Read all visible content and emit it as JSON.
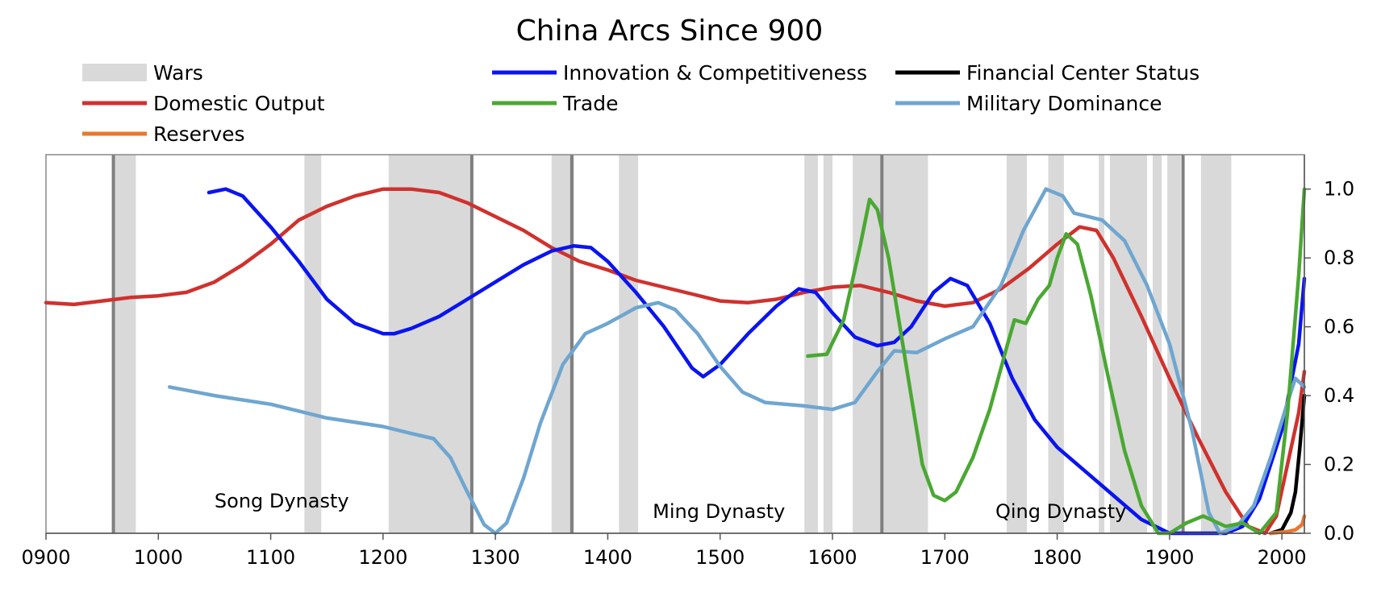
{
  "chart_data": {
    "type": "line",
    "title": "China Arcs Since 900",
    "xlim": [
      900,
      2020
    ],
    "ylim": [
      0,
      1.1
    ],
    "x_ticks": [
      "0900",
      "1000",
      "1100",
      "1200",
      "1300",
      "1400",
      "1500",
      "1600",
      "1700",
      "1800",
      "1900",
      "2000"
    ],
    "y_ticks": [
      "0.0",
      "0.2",
      "0.4",
      "0.6",
      "0.8",
      "1.0"
    ],
    "y_axis_side": "right",
    "grid": false,
    "legend": {
      "placement": "top",
      "items": [
        {
          "label": "Wars",
          "kind": "band",
          "color": "#d9d9d9"
        },
        {
          "label": "Innovation & Competitiveness",
          "kind": "line",
          "color": "#0a14f0"
        },
        {
          "label": "Financial Center Status",
          "kind": "line",
          "color": "#000000"
        },
        {
          "label": "Domestic Output",
          "kind": "line",
          "color": "#d0312d"
        },
        {
          "label": "Trade",
          "kind": "line",
          "color": "#4aa832"
        },
        {
          "label": "Military Dominance",
          "kind": "line",
          "color": "#6fa6d0"
        },
        {
          "label": "Reserves",
          "kind": "line",
          "color": "#e8772e"
        }
      ]
    },
    "war_periods": [
      [
        960,
        980
      ],
      [
        1130,
        1145
      ],
      [
        1205,
        1280
      ],
      [
        1350,
        1370
      ],
      [
        1410,
        1427
      ],
      [
        1575,
        1587
      ],
      [
        1592,
        1600
      ],
      [
        1618,
        1685
      ],
      [
        1755,
        1773
      ],
      [
        1792,
        1806
      ],
      [
        1837,
        1842
      ],
      [
        1847,
        1880
      ],
      [
        1885,
        1893
      ],
      [
        1898,
        1910
      ],
      [
        1928,
        1955
      ]
    ],
    "transition_lines": [
      960,
      1279,
      1368,
      1644,
      1912
    ],
    "annotations": [
      {
        "text": "Song Dynasty",
        "x": 1050,
        "y": 0.075
      },
      {
        "text": "Ming Dynasty",
        "x": 1440,
        "y": 0.045
      },
      {
        "text": "Qing Dynasty",
        "x": 1745,
        "y": 0.045
      }
    ],
    "series": [
      {
        "name": "Domestic Output",
        "color": "#d0312d",
        "points": [
          [
            900,
            0.67
          ],
          [
            925,
            0.665
          ],
          [
            950,
            0.675
          ],
          [
            975,
            0.685
          ],
          [
            1000,
            0.69
          ],
          [
            1025,
            0.7
          ],
          [
            1050,
            0.73
          ],
          [
            1075,
            0.78
          ],
          [
            1100,
            0.84
          ],
          [
            1125,
            0.91
          ],
          [
            1150,
            0.95
          ],
          [
            1175,
            0.98
          ],
          [
            1200,
            1.0
          ],
          [
            1225,
            1.0
          ],
          [
            1250,
            0.99
          ],
          [
            1275,
            0.96
          ],
          [
            1300,
            0.92
          ],
          [
            1325,
            0.88
          ],
          [
            1350,
            0.83
          ],
          [
            1375,
            0.79
          ],
          [
            1400,
            0.765
          ],
          [
            1425,
            0.735
          ],
          [
            1450,
            0.715
          ],
          [
            1475,
            0.695
          ],
          [
            1500,
            0.675
          ],
          [
            1525,
            0.67
          ],
          [
            1550,
            0.68
          ],
          [
            1575,
            0.7
          ],
          [
            1600,
            0.715
          ],
          [
            1625,
            0.72
          ],
          [
            1650,
            0.7
          ],
          [
            1675,
            0.675
          ],
          [
            1700,
            0.66
          ],
          [
            1725,
            0.67
          ],
          [
            1750,
            0.71
          ],
          [
            1775,
            0.77
          ],
          [
            1800,
            0.84
          ],
          [
            1820,
            0.89
          ],
          [
            1835,
            0.88
          ],
          [
            1850,
            0.8
          ],
          [
            1875,
            0.63
          ],
          [
            1900,
            0.45
          ],
          [
            1925,
            0.28
          ],
          [
            1950,
            0.12
          ],
          [
            1970,
            0.02
          ],
          [
            1985,
            0.0
          ],
          [
            1995,
            0.05
          ],
          [
            2005,
            0.2
          ],
          [
            2015,
            0.35
          ],
          [
            2020,
            0.47
          ]
        ]
      },
      {
        "name": "Innovation & Competitiveness",
        "color": "#0a14f0",
        "points": [
          [
            1045,
            0.99
          ],
          [
            1060,
            1.0
          ],
          [
            1075,
            0.98
          ],
          [
            1100,
            0.89
          ],
          [
            1125,
            0.79
          ],
          [
            1150,
            0.68
          ],
          [
            1175,
            0.61
          ],
          [
            1200,
            0.58
          ],
          [
            1210,
            0.58
          ],
          [
            1225,
            0.595
          ],
          [
            1250,
            0.63
          ],
          [
            1275,
            0.68
          ],
          [
            1300,
            0.73
          ],
          [
            1325,
            0.78
          ],
          [
            1350,
            0.82
          ],
          [
            1370,
            0.835
          ],
          [
            1385,
            0.83
          ],
          [
            1400,
            0.79
          ],
          [
            1425,
            0.7
          ],
          [
            1450,
            0.6
          ],
          [
            1475,
            0.48
          ],
          [
            1485,
            0.455
          ],
          [
            1500,
            0.49
          ],
          [
            1525,
            0.58
          ],
          [
            1550,
            0.66
          ],
          [
            1570,
            0.71
          ],
          [
            1585,
            0.7
          ],
          [
            1600,
            0.64
          ],
          [
            1620,
            0.57
          ],
          [
            1640,
            0.545
          ],
          [
            1655,
            0.555
          ],
          [
            1670,
            0.6
          ],
          [
            1690,
            0.7
          ],
          [
            1705,
            0.74
          ],
          [
            1720,
            0.72
          ],
          [
            1740,
            0.61
          ],
          [
            1760,
            0.45
          ],
          [
            1780,
            0.33
          ],
          [
            1800,
            0.25
          ],
          [
            1825,
            0.18
          ],
          [
            1850,
            0.11
          ],
          [
            1875,
            0.04
          ],
          [
            1900,
            0.0
          ],
          [
            1925,
            0.0
          ],
          [
            1950,
            0.0
          ],
          [
            1965,
            0.02
          ],
          [
            1980,
            0.1
          ],
          [
            2000,
            0.3
          ],
          [
            2015,
            0.55
          ],
          [
            2020,
            0.74
          ]
        ]
      },
      {
        "name": "Military Dominance",
        "color": "#6fa6d0",
        "points": [
          [
            1010,
            0.425
          ],
          [
            1050,
            0.4
          ],
          [
            1100,
            0.375
          ],
          [
            1125,
            0.355
          ],
          [
            1150,
            0.335
          ],
          [
            1200,
            0.31
          ],
          [
            1225,
            0.29
          ],
          [
            1245,
            0.275
          ],
          [
            1260,
            0.22
          ],
          [
            1275,
            0.12
          ],
          [
            1290,
            0.025
          ],
          [
            1300,
            0.0
          ],
          [
            1310,
            0.03
          ],
          [
            1325,
            0.16
          ],
          [
            1340,
            0.32
          ],
          [
            1360,
            0.49
          ],
          [
            1380,
            0.58
          ],
          [
            1400,
            0.61
          ],
          [
            1425,
            0.655
          ],
          [
            1445,
            0.67
          ],
          [
            1460,
            0.65
          ],
          [
            1480,
            0.58
          ],
          [
            1500,
            0.485
          ],
          [
            1520,
            0.41
          ],
          [
            1540,
            0.38
          ],
          [
            1575,
            0.37
          ],
          [
            1600,
            0.36
          ],
          [
            1620,
            0.38
          ],
          [
            1640,
            0.47
          ],
          [
            1655,
            0.53
          ],
          [
            1675,
            0.525
          ],
          [
            1700,
            0.565
          ],
          [
            1725,
            0.6
          ],
          [
            1750,
            0.72
          ],
          [
            1770,
            0.88
          ],
          [
            1790,
            1.0
          ],
          [
            1805,
            0.98
          ],
          [
            1815,
            0.93
          ],
          [
            1840,
            0.91
          ],
          [
            1860,
            0.85
          ],
          [
            1880,
            0.72
          ],
          [
            1900,
            0.55
          ],
          [
            1920,
            0.3
          ],
          [
            1935,
            0.06
          ],
          [
            1945,
            0.0
          ],
          [
            1960,
            0.02
          ],
          [
            1975,
            0.08
          ],
          [
            1990,
            0.22
          ],
          [
            2005,
            0.38
          ],
          [
            2012,
            0.45
          ],
          [
            2020,
            0.425
          ]
        ]
      },
      {
        "name": "Trade",
        "color": "#4aa832",
        "points": [
          [
            1578,
            0.515
          ],
          [
            1595,
            0.52
          ],
          [
            1610,
            0.62
          ],
          [
            1625,
            0.84
          ],
          [
            1633,
            0.97
          ],
          [
            1640,
            0.94
          ],
          [
            1650,
            0.8
          ],
          [
            1660,
            0.6
          ],
          [
            1670,
            0.4
          ],
          [
            1680,
            0.2
          ],
          [
            1690,
            0.11
          ],
          [
            1700,
            0.095
          ],
          [
            1710,
            0.12
          ],
          [
            1725,
            0.22
          ],
          [
            1740,
            0.36
          ],
          [
            1755,
            0.54
          ],
          [
            1762,
            0.62
          ],
          [
            1772,
            0.61
          ],
          [
            1783,
            0.68
          ],
          [
            1793,
            0.72
          ],
          [
            1800,
            0.8
          ],
          [
            1808,
            0.87
          ],
          [
            1818,
            0.84
          ],
          [
            1830,
            0.69
          ],
          [
            1845,
            0.46
          ],
          [
            1860,
            0.24
          ],
          [
            1875,
            0.08
          ],
          [
            1890,
            0.0
          ],
          [
            1900,
            0.0
          ],
          [
            1915,
            0.03
          ],
          [
            1930,
            0.05
          ],
          [
            1950,
            0.02
          ],
          [
            1965,
            0.03
          ],
          [
            1980,
            0.0
          ],
          [
            1995,
            0.06
          ],
          [
            2005,
            0.35
          ],
          [
            2015,
            0.75
          ],
          [
            2020,
            1.0
          ]
        ]
      },
      {
        "name": "Financial Center Status",
        "color": "#000000",
        "points": [
          [
            1990,
            0.0
          ],
          [
            2000,
            0.01
          ],
          [
            2008,
            0.06
          ],
          [
            2012,
            0.12
          ],
          [
            2016,
            0.25
          ],
          [
            2020,
            0.4
          ]
        ]
      },
      {
        "name": "Reserves",
        "color": "#e8772e",
        "points": [
          [
            1990,
            0.0
          ],
          [
            2005,
            0.005
          ],
          [
            2012,
            0.01
          ],
          [
            2018,
            0.025
          ],
          [
            2020,
            0.05
          ]
        ]
      }
    ]
  }
}
